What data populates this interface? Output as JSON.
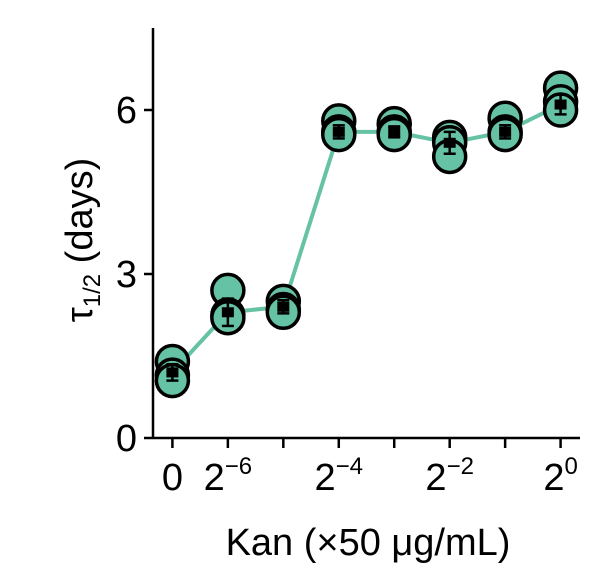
{
  "chart_data": {
    "type": "scatter",
    "x_ticks": [
      {
        "pos": -7,
        "base": "0",
        "exp": ""
      },
      {
        "pos": -6,
        "base": "2",
        "exp": "−6"
      },
      {
        "pos": -4,
        "base": "2",
        "exp": "−4"
      },
      {
        "pos": -2,
        "base": "2",
        "exp": "−2"
      },
      {
        "pos": 0,
        "base": "2",
        "exp": "0"
      }
    ],
    "minor_x_ticks": [
      -5,
      -3,
      -1
    ],
    "xlabel": "Kan (×50 μg/mL)",
    "ylabel_main": "τ",
    "ylabel_sub": "1/2",
    "ylabel_rest": " (days)",
    "ylim": [
      0,
      7.5
    ],
    "xlim": [
      -7.35,
      0.35
    ],
    "y_ticks": [
      0,
      3,
      6
    ],
    "color": "#66c2a5",
    "series": [
      {
        "x": [
          -7,
          -6,
          -5,
          -4,
          -3,
          -2,
          -1,
          0
        ],
        "means": [
          1.2,
          2.3,
          2.4,
          5.6,
          5.6,
          5.4,
          5.6,
          6.1
        ],
        "errors": [
          0.15,
          0.25,
          0.12,
          0.12,
          0.1,
          0.2,
          0.12,
          0.18
        ],
        "replicates": [
          [
            1.4,
            1.15,
            1.05
          ],
          [
            2.7,
            2.25,
            2.2
          ],
          [
            2.5,
            2.35,
            2.3
          ],
          [
            5.8,
            5.6,
            5.55
          ],
          [
            5.75,
            5.6,
            5.55
          ],
          [
            5.5,
            5.4,
            5.15
          ],
          [
            5.85,
            5.6,
            5.55
          ],
          [
            6.4,
            6.15,
            6.0
          ]
        ]
      }
    ]
  }
}
